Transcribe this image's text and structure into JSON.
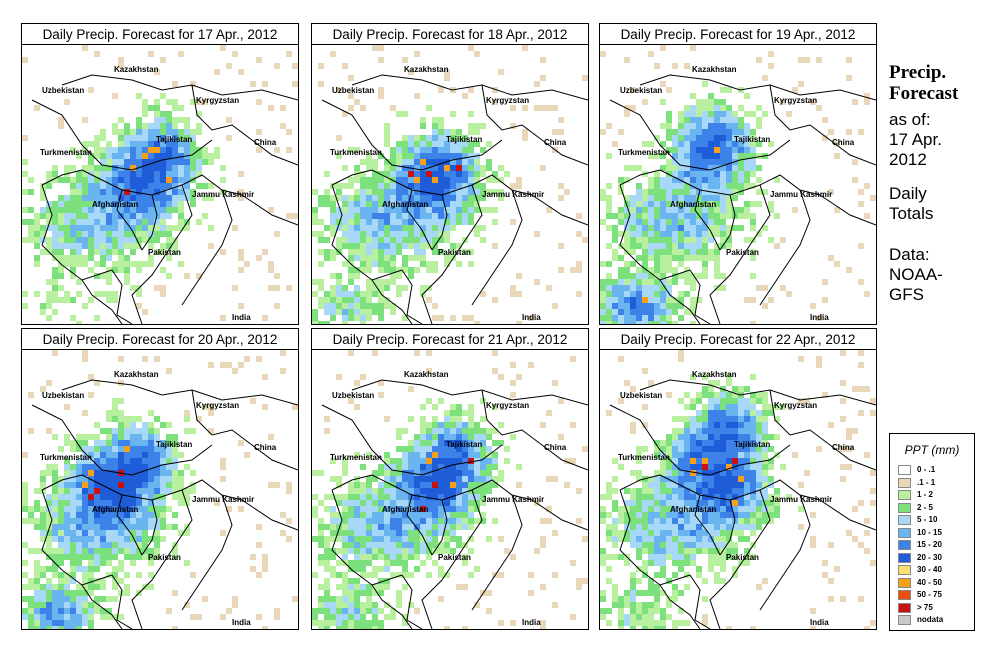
{
  "panels": [
    {
      "title": "Daily Precip. Forecast for  17 Apr., 2012",
      "seed": 17,
      "hot": [
        [
          0.45,
          0.45
        ],
        [
          0.48,
          0.4
        ]
      ],
      "southwest": 0.2
    },
    {
      "title": "Daily Precip. Forecast for  18 Apr., 2012",
      "seed": 18,
      "hot": [
        [
          0.45,
          0.45
        ]
      ],
      "southwest": 0.5
    },
    {
      "title": "Daily Precip. Forecast for  19 Apr., 2012",
      "seed": 19,
      "hot": [
        [
          0.4,
          0.35
        ]
      ],
      "southwest": 1.0
    },
    {
      "title": "Daily Precip. Forecast for  20 Apr., 2012",
      "seed": 20,
      "hot": [
        [
          0.33,
          0.45
        ],
        [
          0.4,
          0.4
        ]
      ],
      "southwest": 0.8
    },
    {
      "title": "Daily Precip. Forecast for  21 Apr., 2012",
      "seed": 21,
      "hot": [
        [
          0.45,
          0.45
        ],
        [
          0.5,
          0.38
        ]
      ],
      "southwest": 0.5
    },
    {
      "title": "Daily Precip. Forecast for  22 Apr., 2012",
      "seed": 22,
      "hot": [
        [
          0.45,
          0.45
        ],
        [
          0.45,
          0.3
        ],
        [
          0.38,
          0.37
        ]
      ],
      "southwest": 0.4
    }
  ],
  "place_labels": [
    "Kazakhstan",
    "Uzbekistan",
    "Kyrgyzstan",
    "Turkmenistan",
    "Tajikistan",
    "China",
    "Afghanistan",
    "Jammu Kashmir",
    "Pakistan",
    "India"
  ],
  "side": {
    "title_line1": "Precip.",
    "title_line2": "Forecast",
    "asof_line1": "as of:",
    "asof_line2": "17 Apr.",
    "asof_line3": "2012",
    "daily_line1": "Daily",
    "daily_line2": "Totals",
    "data_line1": "Data:",
    "data_line2": "NOAA-",
    "data_line3": "GFS"
  },
  "legend": {
    "title": "PPT (mm)",
    "items": [
      {
        "label": "0 - .1",
        "color": "#ffffff"
      },
      {
        "label": ".1 - 1",
        "color": "#e8d7b8"
      },
      {
        "label": "1 - 2",
        "color": "#b8f0a0"
      },
      {
        "label": "2 - 5",
        "color": "#7ce07c"
      },
      {
        "label": "5 - 10",
        "color": "#a8d8f8"
      },
      {
        "label": "10 - 15",
        "color": "#6ab4f0"
      },
      {
        "label": "15 - 20",
        "color": "#3c82e8"
      },
      {
        "label": "20 - 30",
        "color": "#1e5cd8"
      },
      {
        "label": "30 - 40",
        "color": "#f8e070"
      },
      {
        "label": "40 - 50",
        "color": "#f8a018"
      },
      {
        "label": "50 - 75",
        "color": "#e85010"
      },
      {
        "label": "> 75",
        "color": "#c81010"
      },
      {
        "label": "nodata",
        "color": "#c8c8c8"
      }
    ]
  }
}
